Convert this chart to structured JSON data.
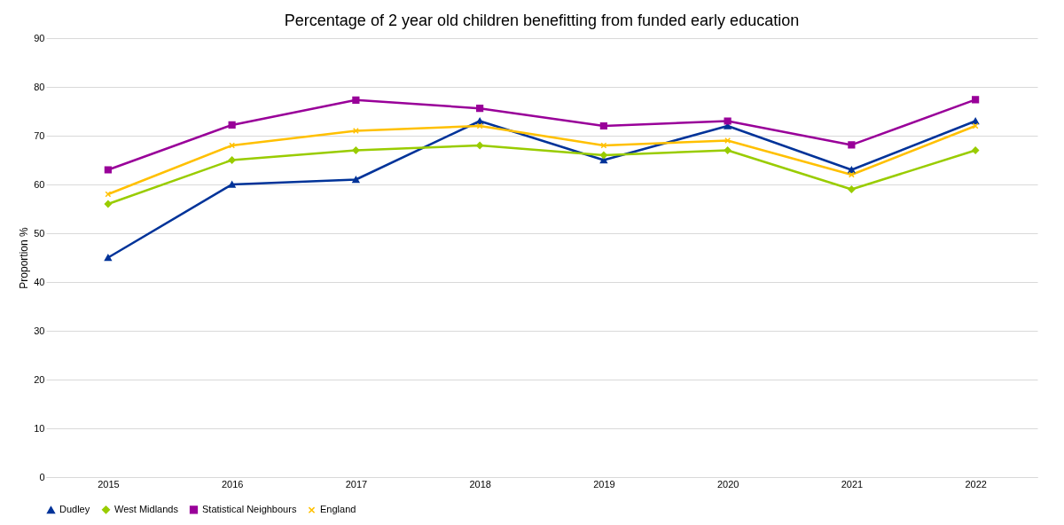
{
  "chart_data": {
    "type": "line",
    "title": "Percentage of 2 year old children benefitting from funded early education",
    "ylabel": "Proportion %",
    "categories": [
      "2015",
      "2016",
      "2017",
      "2018",
      "2019",
      "2020",
      "2021",
      "2022"
    ],
    "series": [
      {
        "name": "Dudley",
        "color": "#003399",
        "marker": "triangle",
        "values": [
          45,
          60,
          61,
          73,
          65,
          72,
          63,
          73
        ]
      },
      {
        "name": "West Midlands",
        "color": "#99cc00",
        "marker": "diamond",
        "values": [
          56,
          65,
          67,
          68,
          66,
          67,
          59,
          67
        ]
      },
      {
        "name": "Statistical Neighbours",
        "color": "#990099",
        "marker": "square",
        "values": [
          63,
          72.2,
          77.3,
          75.6,
          72,
          73,
          68.1,
          77.4
        ]
      },
      {
        "name": "England",
        "color": "#ffc000",
        "marker": "cross",
        "values": [
          58,
          68,
          71,
          72,
          68,
          69,
          62,
          72
        ]
      }
    ],
    "ylim": [
      0,
      90
    ],
    "yticks": [
      0,
      10,
      20,
      30,
      40,
      50,
      60,
      70,
      80,
      90
    ],
    "grid": "y",
    "legend": "bottom",
    "line_style": "solid"
  }
}
